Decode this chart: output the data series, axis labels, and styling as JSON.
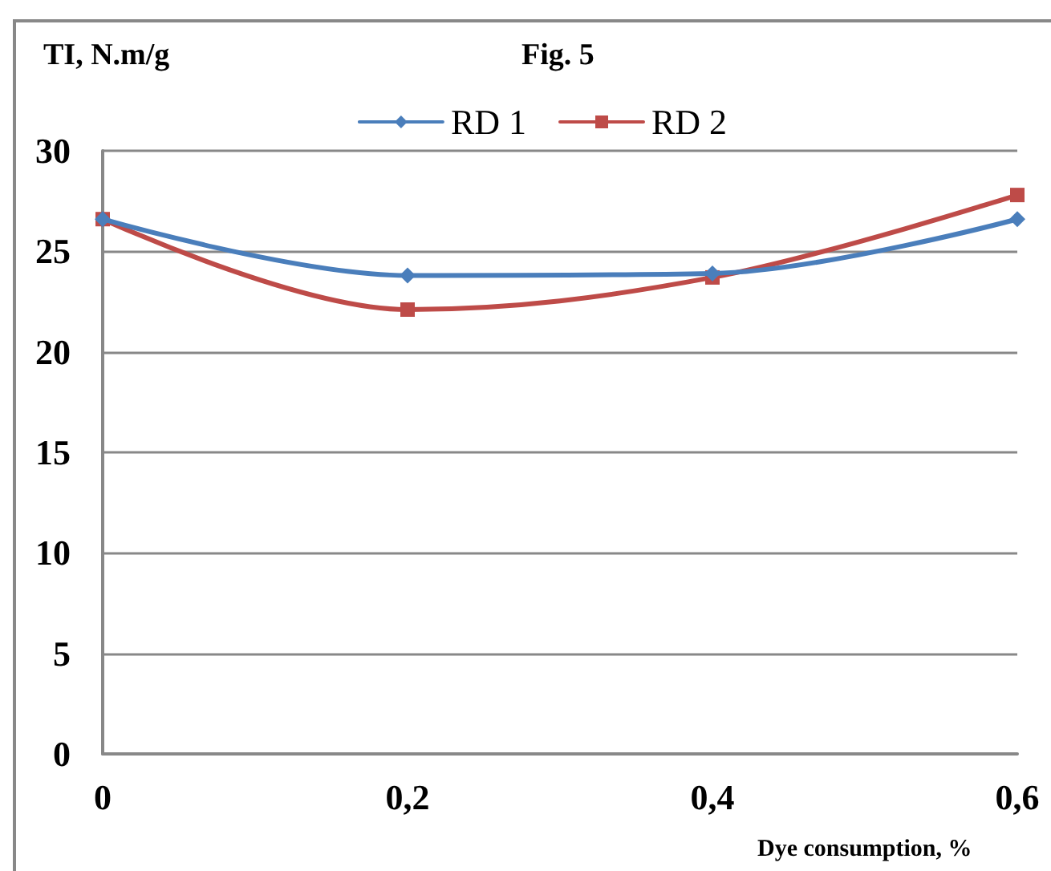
{
  "chart_data": {
    "type": "line",
    "title": "Fig. 5",
    "ylabel": "TI, N.m/g",
    "xlabel": "Dye consumption, %",
    "categories": [
      "0",
      "0,2",
      "0,4",
      "0,6"
    ],
    "series": [
      {
        "name": "RD 1",
        "color": "#4a7ebb",
        "marker": "diamond",
        "values": [
          26.6,
          23.8,
          23.9,
          26.6
        ]
      },
      {
        "name": "RD 2",
        "color": "#be4b48",
        "marker": "square",
        "values": [
          26.6,
          22.1,
          23.7,
          27.8
        ]
      }
    ],
    "ylim": [
      0,
      30
    ],
    "yticks": [
      0,
      5,
      10,
      15,
      20,
      25,
      30
    ],
    "grid": "y",
    "legend": "top",
    "line_style": "solid"
  }
}
